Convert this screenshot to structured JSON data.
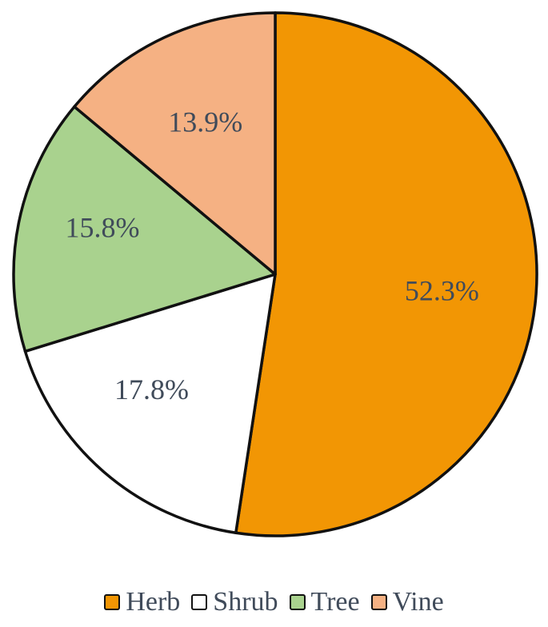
{
  "chart_data": {
    "type": "pie",
    "categories": [
      "Herb",
      "Shrub",
      "Tree",
      "Vine"
    ],
    "values": [
      52.3,
      17.8,
      15.8,
      13.9
    ],
    "data_labels": [
      "52.3%",
      "17.8%",
      "15.8%",
      "13.9%"
    ],
    "colors": [
      "#f29604",
      "#ffffff",
      "#a9d28e",
      "#f5b183"
    ],
    "start_angle_deg": 0,
    "direction": "clockwise",
    "legend_position": "bottom",
    "title": ""
  }
}
